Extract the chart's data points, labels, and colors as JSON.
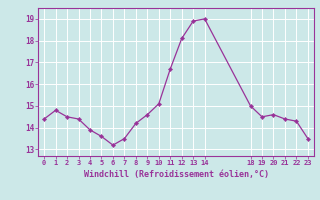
{
  "x": [
    0,
    1,
    2,
    3,
    4,
    5,
    6,
    7,
    8,
    9,
    10,
    11,
    12,
    13,
    14,
    18,
    19,
    20,
    21,
    22,
    23
  ],
  "y": [
    14.4,
    14.8,
    14.5,
    14.4,
    13.9,
    13.6,
    13.2,
    13.5,
    14.2,
    14.6,
    15.1,
    16.7,
    18.1,
    18.9,
    19.0,
    15.0,
    14.5,
    14.6,
    14.4,
    14.3,
    13.5
  ],
  "line_color": "#993399",
  "marker": "D",
  "marker_size": 2.2,
  "bg_color": "#cce8e8",
  "grid_color": "#b0d4d4",
  "xlabel": "Windchill (Refroidissement éolien,°C)",
  "xlabel_color": "#993399",
  "tick_color": "#993399",
  "ylabel_ticks": [
    13,
    14,
    15,
    16,
    17,
    18,
    19
  ],
  "xlim": [
    -0.5,
    23.5
  ],
  "ylim": [
    12.7,
    19.5
  ]
}
